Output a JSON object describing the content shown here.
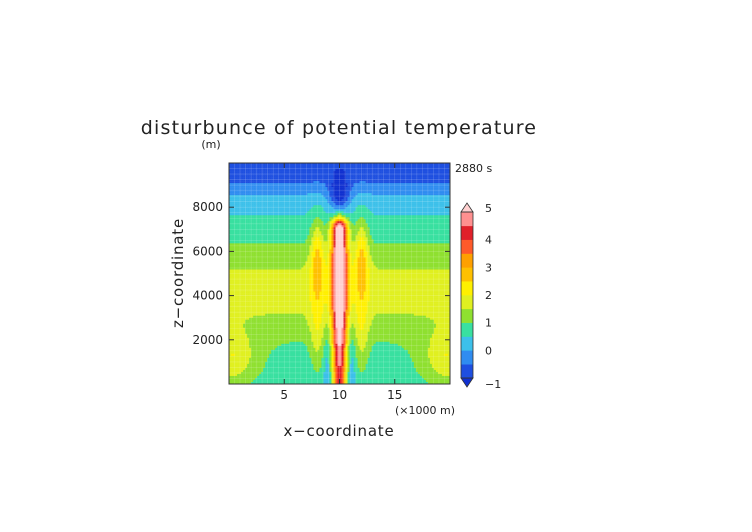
{
  "chart_data": {
    "type": "heatmap",
    "title": "disturbunce of potential temperature",
    "xlabel": "x−coordinate",
    "ylabel": "z−coordinate",
    "yunit": "(m)",
    "xunit": "(×1000 m)",
    "time_label": "2880 s",
    "xlim": [
      0,
      20
    ],
    "ylim": [
      0,
      10000
    ],
    "xticks": [
      5,
      10,
      15
    ],
    "yticks": [
      2000,
      4000,
      6000,
      8000
    ],
    "xtick_labels": [
      "5",
      "10",
      "15"
    ],
    "ytick_labels": [
      "2000",
      "4000",
      "6000",
      "8000"
    ],
    "colorbar": {
      "levels": [
        -1,
        -0.5,
        0,
        0.5,
        1,
        1.5,
        2,
        2.5,
        3,
        3.5,
        4,
        4.5,
        5
      ],
      "tick_values": [
        -1,
        0,
        1,
        2,
        3,
        4,
        5
      ],
      "tick_labels": [
        "−1",
        "0",
        "1",
        "2",
        "3",
        "4",
        "5"
      ],
      "colors": [
        "#1e4fe0",
        "#2f8cf0",
        "#3cc0ea",
        "#39e0a0",
        "#8fe030",
        "#e0f020",
        "#fff000",
        "#ffc000",
        "#ffa000",
        "#ff5a2a",
        "#e0202a",
        "#ff9090"
      ],
      "under_color": "#1030d0",
      "over_color": "#ffd0d0"
    },
    "features": [
      {
        "name": "central warm plume",
        "x": 10,
        "z_top": 7500,
        "max": 4.8
      },
      {
        "name": "upper cold anomaly",
        "x": 10,
        "z": 8600,
        "min": -1.0
      },
      {
        "name": "side warm maxima",
        "x": [
          8,
          12
        ],
        "z": 5800,
        "value": 2.5
      },
      {
        "name": "lower-level warm lobes",
        "x": [
          0.5,
          19.5
        ],
        "z": 1300,
        "value": 2.2
      }
    ]
  }
}
